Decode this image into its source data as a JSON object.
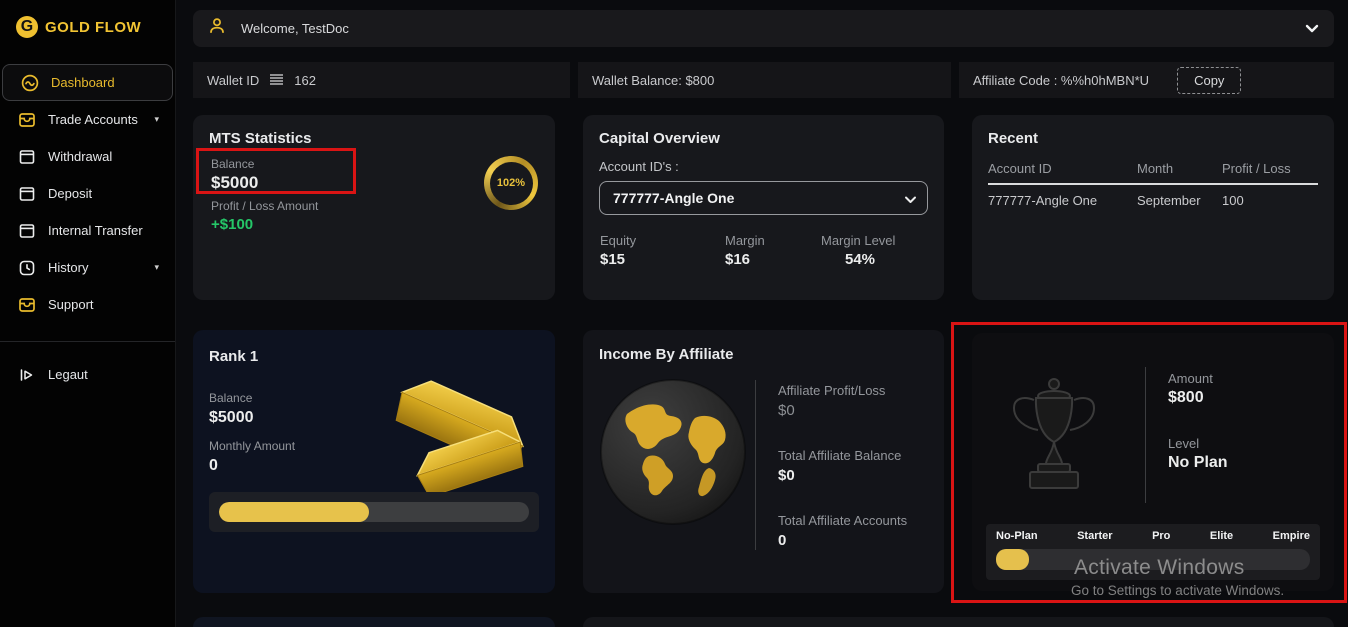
{
  "brand": {
    "name": "GOLD FLOW",
    "logo_letter": "G"
  },
  "colors": {
    "gold": "#efc030",
    "progress_gold": "#e7c24b",
    "green": "#25c768",
    "annotation_red": "#da1414",
    "card_bg": "#17181c",
    "rank_card_bg": "#0d1220"
  },
  "icons": {
    "submenu_chevron": "▾"
  },
  "sidebar": {
    "items": [
      {
        "label": "Dashboard",
        "icon": "dashboard-icon",
        "active": true
      },
      {
        "label": "Trade Accounts",
        "icon": "wallet-icon",
        "has_submenu": true
      },
      {
        "label": "Withdrawal",
        "icon": "window-icon"
      },
      {
        "label": "Deposit",
        "icon": "window-icon"
      },
      {
        "label": "Internal Transfer",
        "icon": "window-icon"
      },
      {
        "label": "History",
        "icon": "history-icon",
        "has_submenu": true
      },
      {
        "label": "Support",
        "icon": "wallet-icon"
      }
    ],
    "logout_label": "Legaut"
  },
  "header": {
    "welcome": "Welcome, TestDoc"
  },
  "info_bar": {
    "wallet_id_label": "Wallet ID",
    "wallet_id_value": "162",
    "wallet_balance": "Wallet Balance: $800",
    "affiliate_code": "Affiliate Code : %%h0hMBN*U",
    "copy_button": "Copy"
  },
  "mts": {
    "title": "MTS Statistics",
    "balance_label": "Balance",
    "balance_value": "$5000",
    "pl_label": "Profit / Loss Amount",
    "pl_value": "+$100",
    "gauge_percent": "102%"
  },
  "capital": {
    "title": "Capital Overview",
    "account_ids_label": "Account ID's :",
    "selected_account": "777777-Angle One",
    "stats": [
      {
        "label": "Equity",
        "value": "$15"
      },
      {
        "label": "Margin",
        "value": "$16"
      },
      {
        "label": "Margin Level",
        "value": "54%"
      }
    ]
  },
  "recent": {
    "title": "Recent",
    "columns": [
      "Account ID",
      "Month",
      "Profit / Loss"
    ],
    "rows": [
      [
        "777777-Angle One",
        "September",
        "100"
      ]
    ]
  },
  "rank": {
    "title": "Rank 1",
    "balance_label": "Balance",
    "balance_value": "$5000",
    "monthly_label": "Monthly Amount",
    "monthly_value": "0",
    "progress_percent": 48.5
  },
  "affiliate": {
    "title": "Income By Affiliate",
    "stats": [
      {
        "label": "Affiliate Profit/Loss",
        "value": "$0"
      },
      {
        "label": "Total Affiliate Balance",
        "value": "$0"
      },
      {
        "label": "Total Affiliate Accounts",
        "value": "0"
      }
    ]
  },
  "plan": {
    "amount_label": "Amount",
    "amount_value": "$800",
    "level_label": "Level",
    "level_value": "No Plan",
    "tiers": [
      "No-Plan",
      "Starter",
      "Pro",
      "Elite",
      "Empire"
    ],
    "progress_percent": 10.5
  },
  "watermark": {
    "line1": "Activate Windows",
    "line2": "Go to Settings to activate Windows."
  }
}
